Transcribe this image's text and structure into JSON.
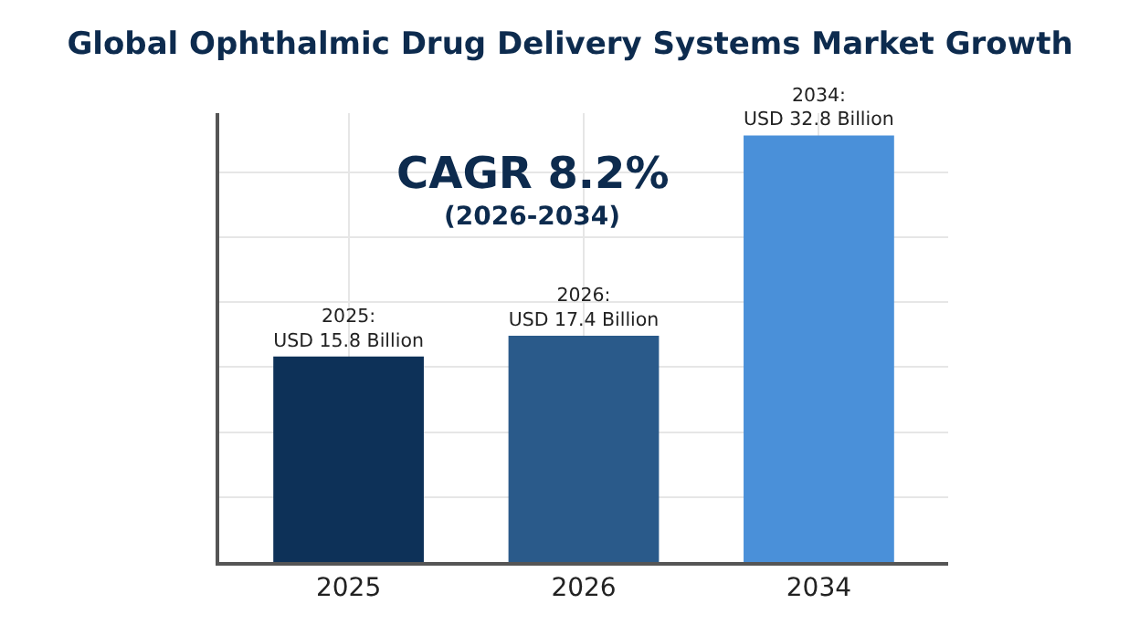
{
  "chart_data": {
    "type": "bar",
    "title": "Global Ophthalmic Drug Delivery Systems Market Growth",
    "categories": [
      "2025",
      "2026",
      "2034"
    ],
    "values": [
      15.8,
      17.4,
      32.8
    ],
    "colors": [
      "#0d3158",
      "#2a5a8a",
      "#4a90d9"
    ],
    "value_labels": [
      "2025:\nUSD 15.8 Billion",
      "2026:\nUSD 17.4 Billion",
      "2034:\nUSD 32.8 Billion"
    ],
    "annotations": [
      "CAGR 8.2%",
      "(2026-2034)"
    ],
    "grid": true,
    "tick_labels": "x",
    "legend": false
  }
}
